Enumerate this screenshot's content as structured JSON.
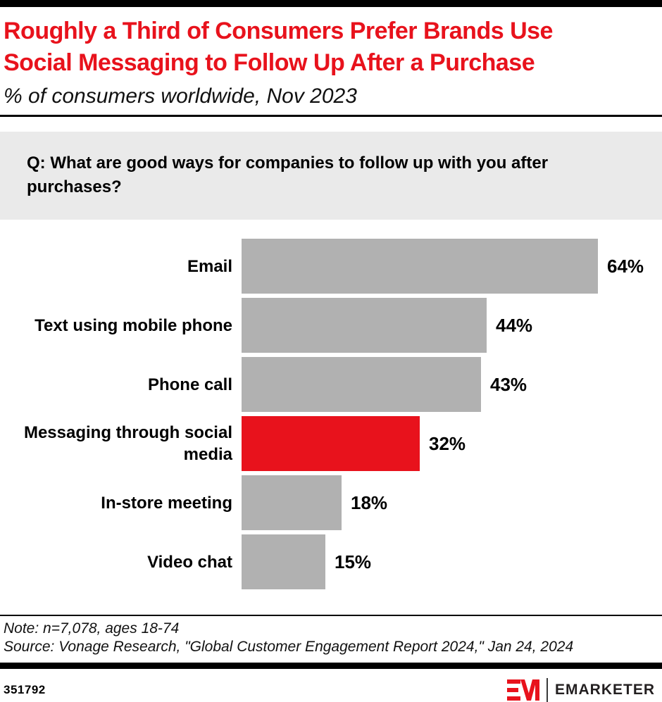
{
  "header": {
    "title_lines": [
      "Roughly a Third of Consumers Prefer Brands Use",
      "Social Messaging to Follow Up After a Purchase"
    ],
    "subtitle": "% of consumers worldwide, Nov 2023"
  },
  "question": "Q: What are good ways for companies to follow up with you after purchases?",
  "chart_data": {
    "type": "bar",
    "orientation": "horizontal",
    "categories": [
      "Email",
      "Text using mobile phone",
      "Phone call",
      "Messaging through social media",
      "In-store meeting",
      "Video chat"
    ],
    "values": [
      64,
      44,
      43,
      32,
      18,
      15
    ],
    "value_labels": [
      "64%",
      "44%",
      "43%",
      "32%",
      "18%",
      "15%"
    ],
    "unit": "%",
    "xlim": [
      0,
      64
    ],
    "bar_color": "#b1b1b1",
    "highlight_category": "Messaging through social media",
    "highlight_color": "#e8121c",
    "grid": false,
    "legend": false
  },
  "notes": {
    "note": "Note: n=7,078, ages 18-74",
    "source": "Source: Vonage Research, \"Global Customer Engagement Report 2024,\" Jan 24, 2024"
  },
  "footer": {
    "chart_id": "351792",
    "brand": "EMARKETER"
  },
  "colors": {
    "accent_red": "#e8121c",
    "bar_gray": "#b1b1b1",
    "question_bg": "#eaeaea",
    "black": "#000000"
  }
}
